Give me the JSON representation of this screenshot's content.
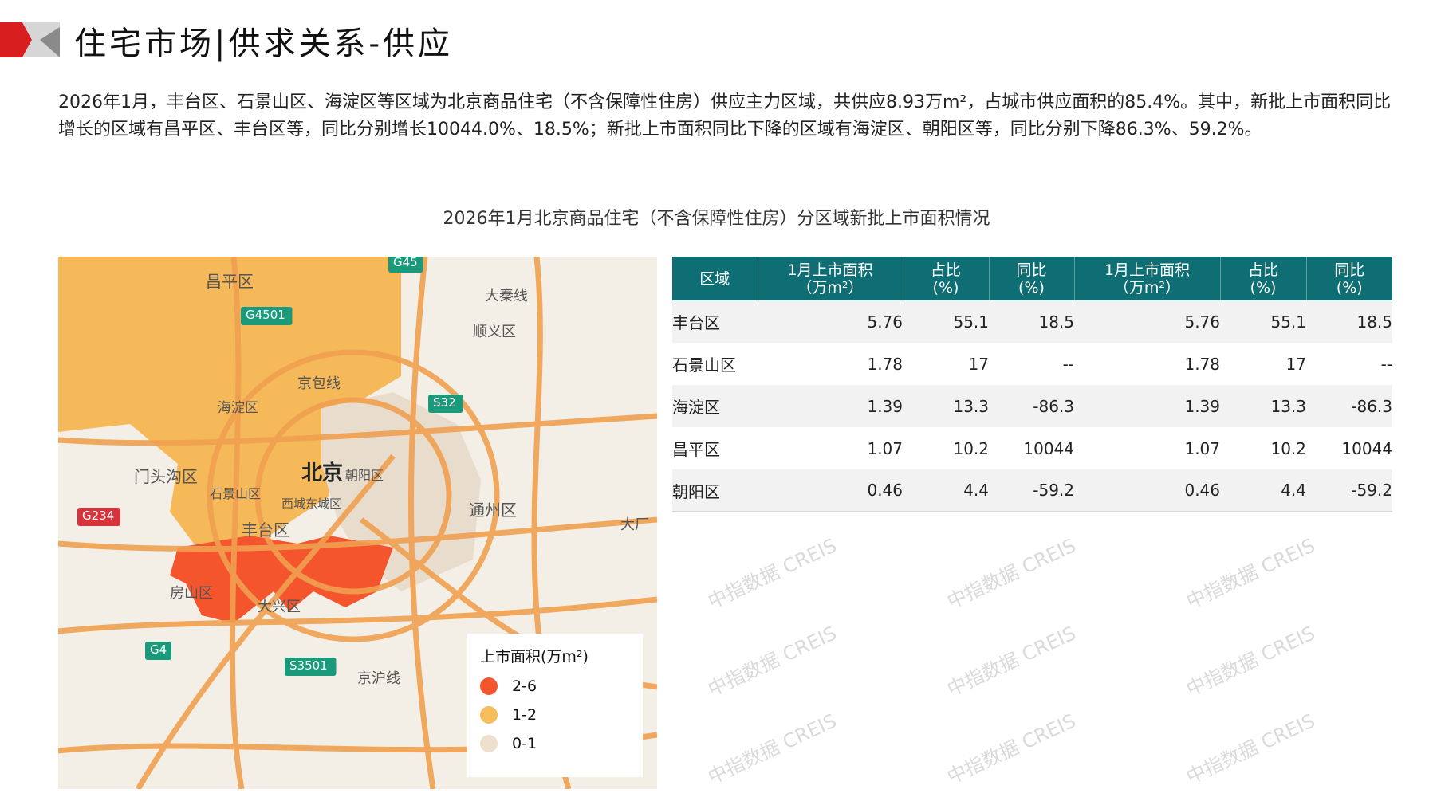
{
  "header": {
    "title": "住宅市场|供求关系-供应"
  },
  "summary": "2026年1月，丰台区、石景山区、海淀区等区域为北京商品住宅（不含保障性住房）供应主力区域，共供应8.93万m²，占城市供应面积的85.4%。其中，新批上市面积同比增长的区域有昌平区、丰台区等，同比分别增长10044.0%、18.5%；新批上市面积同比下降的区域有海淀区、朝阳区等，同比分别下降86.3%、59.2%。",
  "chart_title": "2026年1月北京商品住宅（不含保障性住房）分区域新批上市面积情况",
  "watermark": "中指数据 CREIS",
  "map": {
    "labels": [
      "昌平区",
      "G4501",
      "G45",
      "大秦线",
      "顺义区",
      "京包线",
      "S32",
      "海淀区",
      "门头沟区",
      "石景山区",
      "G234",
      "北京",
      "朝阳区",
      "西城东城区",
      "通州区",
      "丰台区",
      "房山区",
      "大兴区",
      "G4",
      "S3501",
      "京沪线",
      "大厂"
    ],
    "legend": {
      "title": "上市面积(万m²)",
      "items": [
        {
          "label": "2-6",
          "color": "#f4552d"
        },
        {
          "label": "1-2",
          "color": "#f6bd5c"
        },
        {
          "label": "0-1",
          "color": "#ede0cc"
        }
      ]
    },
    "colors": {
      "fengtai": "#f4552d",
      "north": "#f6b95a",
      "chaoyang": "#e8dccc"
    }
  },
  "table": {
    "headers": [
      "区域",
      "1月上市面积\n（万m²）",
      "占比\n(%)",
      "同比\n(%)",
      "1月上市面积\n（万m²）",
      "占比\n(%)",
      "同比\n(%)"
    ],
    "rows": [
      [
        "丰台区",
        "5.76",
        "55.1",
        "18.5",
        "5.76",
        "55.1",
        "18.5"
      ],
      [
        "石景山区",
        "1.78",
        "17",
        "--",
        "1.78",
        "17",
        "--"
      ],
      [
        "海淀区",
        "1.39",
        "13.3",
        "-86.3",
        "1.39",
        "13.3",
        "-86.3"
      ],
      [
        "昌平区",
        "1.07",
        "10.2",
        "10044",
        "1.07",
        "10.2",
        "10044"
      ],
      [
        "朝阳区",
        "0.46",
        "4.4",
        "-59.2",
        "0.46",
        "4.4",
        "-59.2"
      ]
    ],
    "header_color": "#0e6e73"
  }
}
